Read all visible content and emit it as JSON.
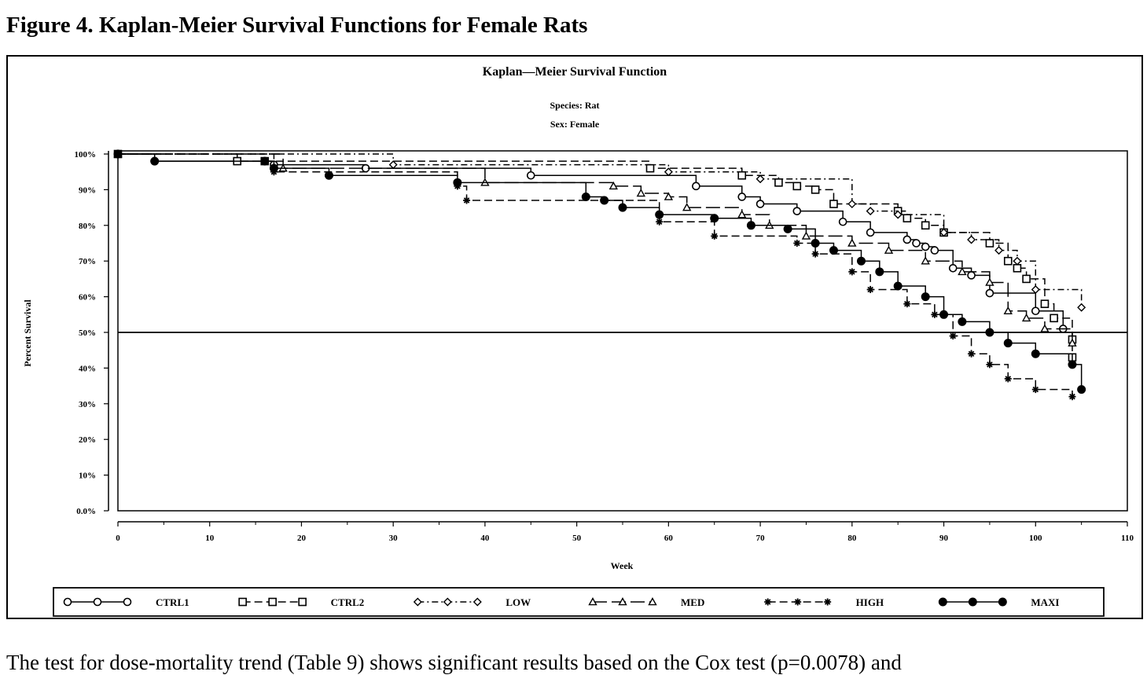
{
  "figure_heading": "Figure 4. Kaplan-Meier Survival Functions for Female Rats",
  "body_text": "The test for dose-mortality trend (Table 9) shows significant results based on the Cox test (p=0.0078) and",
  "chart_data": {
    "type": "line",
    "title": "Kaplan—Meier Survival Function",
    "subtitle": [
      "Species: Rat",
      "Sex: Female"
    ],
    "xlabel": "Week",
    "ylabel": "Percent Survival",
    "xlim": [
      0,
      110
    ],
    "ylim": [
      0,
      100
    ],
    "x_ticks": [
      0,
      10,
      20,
      30,
      40,
      50,
      60,
      70,
      80,
      90,
      100,
      110
    ],
    "y_ticks": [
      0,
      10,
      20,
      30,
      40,
      50,
      60,
      70,
      80,
      90,
      100
    ],
    "y_tick_labels": [
      "0.0%",
      "10%",
      "20%",
      "30%",
      "40%",
      "50%",
      "60%",
      "70%",
      "80%",
      "90%",
      "100%"
    ],
    "reference_line": 50,
    "grid": false,
    "legend_position": "bottom",
    "series": [
      {
        "name": "CTRL1",
        "marker": "circle-open",
        "dash": "solid",
        "points": [
          [
            0,
            100
          ],
          [
            4,
            98
          ],
          [
            16,
            98
          ],
          [
            17,
            97
          ],
          [
            27,
            96
          ],
          [
            45,
            94
          ],
          [
            63,
            91
          ],
          [
            68,
            88
          ],
          [
            70,
            86
          ],
          [
            74,
            84
          ],
          [
            79,
            81
          ],
          [
            82,
            78
          ],
          [
            86,
            76
          ],
          [
            87,
            75
          ],
          [
            88,
            74
          ],
          [
            89,
            73
          ],
          [
            91,
            68
          ],
          [
            93,
            66
          ],
          [
            95,
            61
          ],
          [
            100,
            56
          ],
          [
            103,
            51
          ]
        ]
      },
      {
        "name": "CTRL2",
        "marker": "square-open",
        "dash": "dash",
        "points": [
          [
            0,
            100
          ],
          [
            13,
            98
          ],
          [
            16,
            98
          ],
          [
            58,
            96
          ],
          [
            68,
            94
          ],
          [
            72,
            92
          ],
          [
            74,
            91
          ],
          [
            76,
            90
          ],
          [
            78,
            86
          ],
          [
            85,
            84
          ],
          [
            86,
            82
          ],
          [
            88,
            80
          ],
          [
            90,
            78
          ],
          [
            95,
            75
          ],
          [
            97,
            70
          ],
          [
            98,
            68
          ],
          [
            99,
            65
          ],
          [
            101,
            58
          ],
          [
            102,
            54
          ],
          [
            104,
            48
          ],
          [
            104,
            43
          ]
        ]
      },
      {
        "name": "LOW",
        "marker": "diamond-open",
        "dash": "dashdot",
        "points": [
          [
            0,
            100
          ],
          [
            30,
            97
          ],
          [
            60,
            95
          ],
          [
            70,
            93
          ],
          [
            80,
            86
          ],
          [
            82,
            84
          ],
          [
            85,
            83
          ],
          [
            90,
            78
          ],
          [
            93,
            76
          ],
          [
            96,
            73
          ],
          [
            98,
            70
          ],
          [
            100,
            62
          ],
          [
            105,
            57
          ]
        ]
      },
      {
        "name": "MED",
        "marker": "triangle-open",
        "dash": "longdash",
        "points": [
          [
            0,
            100
          ],
          [
            18,
            96
          ],
          [
            40,
            92
          ],
          [
            54,
            91
          ],
          [
            57,
            89
          ],
          [
            60,
            88
          ],
          [
            62,
            85
          ],
          [
            68,
            83
          ],
          [
            71,
            80
          ],
          [
            75,
            77
          ],
          [
            80,
            75
          ],
          [
            84,
            73
          ],
          [
            88,
            70
          ],
          [
            92,
            67
          ],
          [
            95,
            64
          ],
          [
            97,
            56
          ],
          [
            99,
            54
          ],
          [
            101,
            51
          ],
          [
            104,
            47
          ]
        ]
      },
      {
        "name": "HIGH",
        "marker": "star",
        "dash": "dash",
        "points": [
          [
            0,
            100
          ],
          [
            17,
            95
          ],
          [
            37,
            91
          ],
          [
            38,
            87
          ],
          [
            59,
            81
          ],
          [
            65,
            77
          ],
          [
            74,
            75
          ],
          [
            76,
            72
          ],
          [
            80,
            67
          ],
          [
            82,
            62
          ],
          [
            86,
            58
          ],
          [
            89,
            55
          ],
          [
            91,
            49
          ],
          [
            93,
            44
          ],
          [
            95,
            41
          ],
          [
            97,
            37
          ],
          [
            100,
            34
          ],
          [
            104,
            32
          ]
        ]
      },
      {
        "name": "MAXI",
        "marker": "circle-filled",
        "dash": "solid",
        "points": [
          [
            0,
            100
          ],
          [
            4,
            98
          ],
          [
            16,
            98
          ],
          [
            17,
            96
          ],
          [
            23,
            94
          ],
          [
            37,
            92
          ],
          [
            51,
            88
          ],
          [
            53,
            87
          ],
          [
            55,
            85
          ],
          [
            59,
            83
          ],
          [
            65,
            82
          ],
          [
            69,
            80
          ],
          [
            73,
            79
          ],
          [
            76,
            75
          ],
          [
            78,
            73
          ],
          [
            81,
            70
          ],
          [
            83,
            67
          ],
          [
            85,
            63
          ],
          [
            88,
            60
          ],
          [
            90,
            55
          ],
          [
            92,
            53
          ],
          [
            95,
            50
          ],
          [
            97,
            47
          ],
          [
            100,
            44
          ],
          [
            104,
            41
          ],
          [
            105,
            34
          ]
        ]
      }
    ]
  }
}
